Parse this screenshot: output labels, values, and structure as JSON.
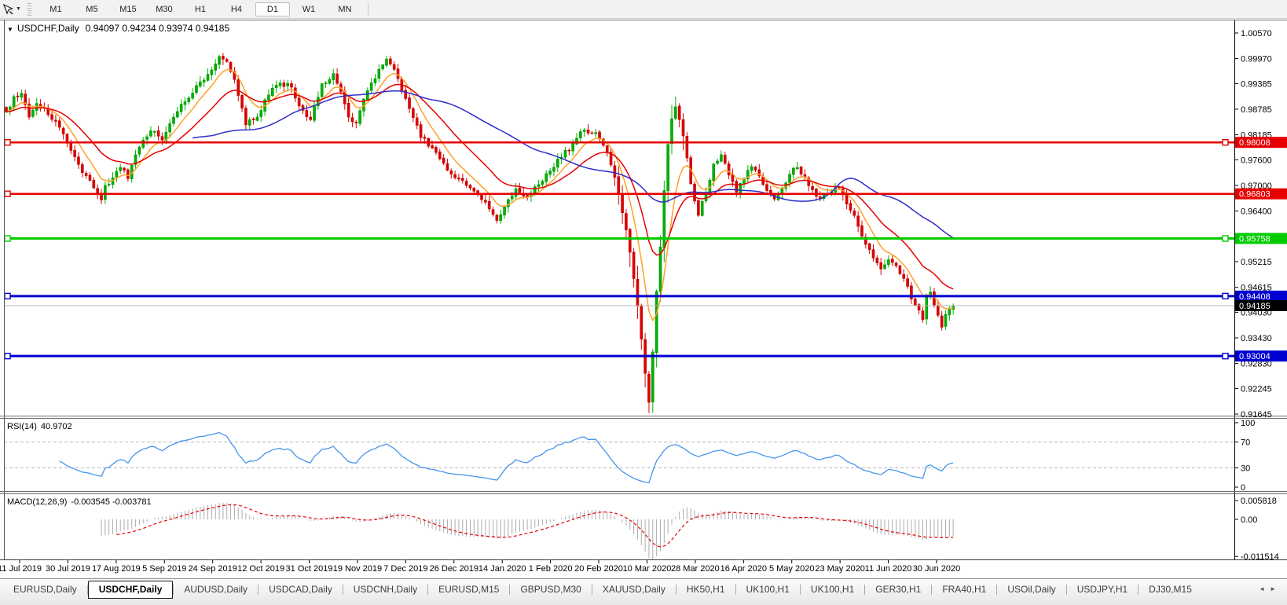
{
  "toolbar": {
    "dropdown_glyph": "▼",
    "timeframes": [
      {
        "label": "M1",
        "active": false
      },
      {
        "label": "M5",
        "active": false
      },
      {
        "label": "M15",
        "active": false
      },
      {
        "label": "M30",
        "active": false
      },
      {
        "label": "H1",
        "active": false
      },
      {
        "label": "H4",
        "active": false
      },
      {
        "label": "D1",
        "active": true
      },
      {
        "label": "W1",
        "active": false
      },
      {
        "label": "MN",
        "active": false
      }
    ]
  },
  "chart": {
    "collapse_glyph": "▼",
    "symbol_period": "USDCHF,Daily",
    "ohlc_text": "0.94097 0.94234 0.93974 0.94185",
    "price_ticks": [
      "1.00570",
      "0.99970",
      "0.99385",
      "0.98785",
      "0.98185",
      "0.97600",
      "0.97000",
      "0.96400",
      "0.95815",
      "0.95215",
      "0.94615",
      "0.94030",
      "0.93430",
      "0.92830",
      "0.92245",
      "0.91645"
    ],
    "hlines": [
      {
        "value": 0.98008,
        "label": "0.98008",
        "color": "#e60000",
        "width": 2.5,
        "left_marker": true,
        "right_marker": true
      },
      {
        "value": 0.96803,
        "label": "0.96803",
        "color": "#e60000",
        "width": 2.5,
        "left_marker": true,
        "right_marker": false
      },
      {
        "value": 0.95758,
        "label": "0.95758",
        "color": "#00cc00",
        "width": 3,
        "left_marker": true,
        "right_marker": true
      },
      {
        "value": 0.94408,
        "label": "0.94408",
        "color": "#0000d0",
        "width": 3,
        "left_marker": true,
        "right_marker": true
      },
      {
        "value": 0.93004,
        "label": "0.93004",
        "color": "#0000d0",
        "width": 3,
        "left_marker": true,
        "right_marker": true
      }
    ],
    "bid_line": {
      "value": 0.94185,
      "label": "0.94185",
      "line_color": "#bcbcbc",
      "badge_bg": "#000000"
    }
  },
  "chart_data": {
    "type": "candlestick",
    "symbol": "USDCHF",
    "period": "Daily",
    "bars": 250,
    "visible_price_range": [
      0.914,
      1.00845
    ],
    "last_bar": {
      "open": 0.94097,
      "high": 0.94234,
      "low": 0.93974,
      "close": 0.94185
    },
    "bull_color": "#00b300",
    "bull_stroke": "#008f00",
    "bear_color": "#e00000",
    "bear_stroke": "#bd0000",
    "ma_lines": [
      {
        "name": "MA fast",
        "type": "EMA",
        "period": 8,
        "color": "#ffa028"
      },
      {
        "name": "MA medium",
        "type": "EMA",
        "period": 21,
        "color": "#e60000"
      },
      {
        "name": "MA slow",
        "type": "SMA",
        "period": 50,
        "color": "#2d2dc8"
      }
    ],
    "close_anchors": [
      [
        0,
        0.9872
      ],
      [
        2,
        0.9908
      ],
      [
        4,
        0.9916
      ],
      [
        6,
        0.986
      ],
      [
        8,
        0.9892
      ],
      [
        11,
        0.9866
      ],
      [
        14,
        0.9836
      ],
      [
        17,
        0.9782
      ],
      [
        20,
        0.973
      ],
      [
        23,
        0.9694
      ],
      [
        25,
        0.9666
      ],
      [
        26,
        0.97
      ],
      [
        28,
        0.9718
      ],
      [
        30,
        0.9742
      ],
      [
        32,
        0.9716
      ],
      [
        35,
        0.979
      ],
      [
        38,
        0.9828
      ],
      [
        41,
        0.9806
      ],
      [
        44,
        0.986
      ],
      [
        47,
        0.9896
      ],
      [
        50,
        0.9934
      ],
      [
        53,
        0.996
      ],
      [
        56,
        1.0002
      ],
      [
        58,
        0.999
      ],
      [
        60,
        0.9948
      ],
      [
        63,
        0.9842
      ],
      [
        66,
        0.986
      ],
      [
        69,
        0.9912
      ],
      [
        72,
        0.994
      ],
      [
        75,
        0.993
      ],
      [
        77,
        0.9886
      ],
      [
        80,
        0.9854
      ],
      [
        83,
        0.9938
      ],
      [
        86,
        0.9962
      ],
      [
        88,
        0.992
      ],
      [
        90,
        0.986
      ],
      [
        92,
        0.9846
      ],
      [
        95,
        0.9922
      ],
      [
        98,
        0.9972
      ],
      [
        100,
        0.9996
      ],
      [
        103,
        0.995
      ],
      [
        106,
        0.988
      ],
      [
        109,
        0.9812
      ],
      [
        112,
        0.9788
      ],
      [
        115,
        0.9752
      ],
      [
        118,
        0.9718
      ],
      [
        121,
        0.97
      ],
      [
        124,
        0.9678
      ],
      [
        127,
        0.9645
      ],
      [
        129,
        0.9618
      ],
      [
        131,
        0.965
      ],
      [
        134,
        0.9692
      ],
      [
        137,
        0.9674
      ],
      [
        140,
        0.9702
      ],
      [
        143,
        0.9734
      ],
      [
        146,
        0.9766
      ],
      [
        149,
        0.9798
      ],
      [
        152,
        0.983
      ],
      [
        155,
        0.9824
      ],
      [
        157,
        0.9794
      ],
      [
        159,
        0.9748
      ],
      [
        161,
        0.968
      ],
      [
        163,
        0.9596
      ],
      [
        165,
        0.9482
      ],
      [
        167,
        0.934
      ],
      [
        168,
        0.926
      ],
      [
        169,
        0.9192
      ],
      [
        170,
        0.931
      ],
      [
        171,
        0.9452
      ],
      [
        172,
        0.9556
      ],
      [
        173,
        0.9688
      ],
      [
        174,
        0.9796
      ],
      [
        175,
        0.9856
      ],
      [
        176,
        0.9884
      ],
      [
        178,
        0.9816
      ],
      [
        180,
        0.9704
      ],
      [
        182,
        0.963
      ],
      [
        184,
        0.9682
      ],
      [
        186,
        0.975
      ],
      [
        188,
        0.9772
      ],
      [
        190,
        0.9724
      ],
      [
        192,
        0.9684
      ],
      [
        194,
        0.9714
      ],
      [
        196,
        0.9744
      ],
      [
        198,
        0.9722
      ],
      [
        200,
        0.9688
      ],
      [
        202,
        0.9668
      ],
      [
        204,
        0.9692
      ],
      [
        206,
        0.9726
      ],
      [
        208,
        0.9742
      ],
      [
        210,
        0.972
      ],
      [
        212,
        0.969
      ],
      [
        214,
        0.9668
      ],
      [
        216,
        0.9682
      ],
      [
        218,
        0.9698
      ],
      [
        220,
        0.9678
      ],
      [
        222,
        0.9642
      ],
      [
        224,
        0.9604
      ],
      [
        226,
        0.9562
      ],
      [
        228,
        0.953
      ],
      [
        230,
        0.9504
      ],
      [
        232,
        0.9526
      ],
      [
        234,
        0.9512
      ],
      [
        236,
        0.9482
      ],
      [
        238,
        0.9434
      ],
      [
        240,
        0.9408
      ],
      [
        241,
        0.9386
      ],
      [
        242,
        0.9442
      ],
      [
        243,
        0.945
      ],
      [
        244,
        0.942
      ],
      [
        245,
        0.9396
      ],
      [
        246,
        0.9368
      ],
      [
        247,
        0.9398
      ],
      [
        248,
        0.9412
      ],
      [
        249,
        0.94185
      ]
    ]
  },
  "rsi_panel": {
    "name": "RSI(14)",
    "value": "40.9702",
    "line_color": "#4696ec",
    "grid_color": "#b4b4b4",
    "ticks": [
      {
        "label": "100",
        "v": 100,
        "dashed": false
      },
      {
        "label": "70",
        "v": 70,
        "dashed": true
      },
      {
        "label": "30",
        "v": 30,
        "dashed": true
      },
      {
        "label": "0",
        "v": 0,
        "dashed": false
      }
    ]
  },
  "macd_panel": {
    "name": "MACD(12,26,9)",
    "values": "-0.003545 -0.003781",
    "histogram_color": "#ababab",
    "signal_color": "#e60000",
    "ticks": [
      {
        "label": "0.005818",
        "v": 0.005818
      },
      {
        "label": "0.00",
        "v": 0
      },
      {
        "label": "-0.011514",
        "v": -0.011514
      }
    ]
  },
  "date_axis": {
    "labels": [
      "11 Jul 2019",
      "30 Jul 2019",
      "17 Aug 2019",
      "5 Sep 2019",
      "24 Sep 2019",
      "12 Oct 2019",
      "31 Oct 2019",
      "19 Nov 2019",
      "7 Dec 2019",
      "26 Dec 2019",
      "14 Jan 2020",
      "1 Feb 2020",
      "20 Feb 2020",
      "10 Mar 2020",
      "28 Mar 2020",
      "16 Apr 2020",
      "5 May 2020",
      "23 May 2020",
      "11 Jun 2020",
      "30 Jun 2020"
    ]
  },
  "tabbar": {
    "scroll_left": "◄",
    "scroll_right": "►",
    "tabs": [
      {
        "label": "EURUSD,Daily",
        "active": false
      },
      {
        "label": "USDCHF,Daily",
        "active": true
      },
      {
        "label": "AUDUSD,Daily",
        "active": false
      },
      {
        "label": "USDCAD,Daily",
        "active": false
      },
      {
        "label": "USDCNH,Daily",
        "active": false
      },
      {
        "label": "EURUSD,M15",
        "active": false
      },
      {
        "label": "GBPUSD,M30",
        "active": false
      },
      {
        "label": "XAUUSD,Daily",
        "active": false
      },
      {
        "label": "HK50,H1",
        "active": false
      },
      {
        "label": "UK100,H1",
        "active": false
      },
      {
        "label": "UK100,H1",
        "active": false
      },
      {
        "label": "GER30,H1",
        "active": false
      },
      {
        "label": "FRA40,H1",
        "active": false
      },
      {
        "label": "USOil,Daily",
        "active": false
      },
      {
        "label": "USDJPY,H1",
        "active": false
      },
      {
        "label": "DJ30,M15",
        "active": false
      }
    ]
  }
}
